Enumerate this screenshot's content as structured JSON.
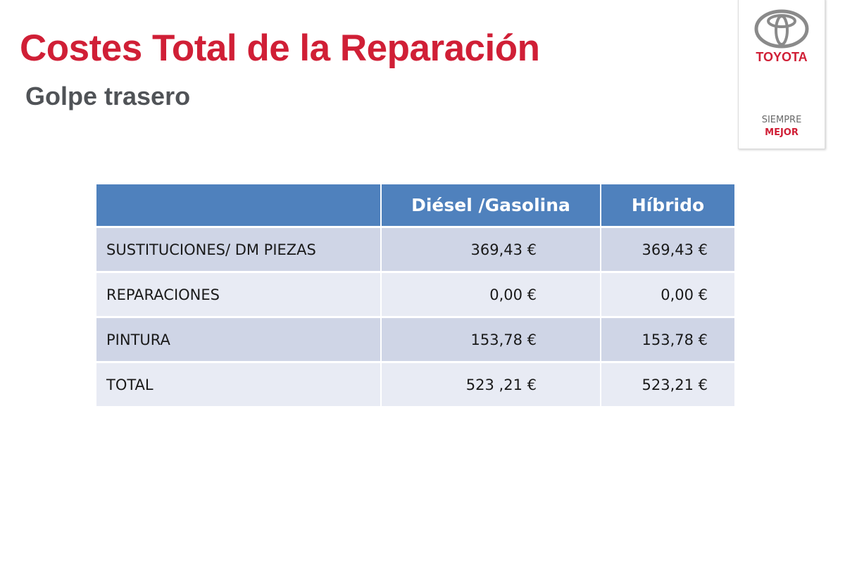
{
  "header": {
    "title": "Costes Total de la Reparación",
    "subtitle": "Golpe trasero"
  },
  "logo": {
    "brand": "TOYOTA",
    "tagline_1": "SIEMPRE",
    "tagline_2": "MEJOR"
  },
  "table": {
    "columns": [
      "",
      "Diésel /Gasolina",
      "Híbrido"
    ],
    "rows": [
      [
        "SUSTITUCIONES/ DM PIEZAS",
        "369,43 €",
        "369,43 €"
      ],
      [
        "REPARACIONES",
        "0,00 €",
        "0,00 €"
      ],
      [
        "PINTURA",
        "153,78 €",
        "153,78 €"
      ],
      [
        "TOTAL",
        "523 ,21 €",
        "523,21 €"
      ]
    ]
  }
}
